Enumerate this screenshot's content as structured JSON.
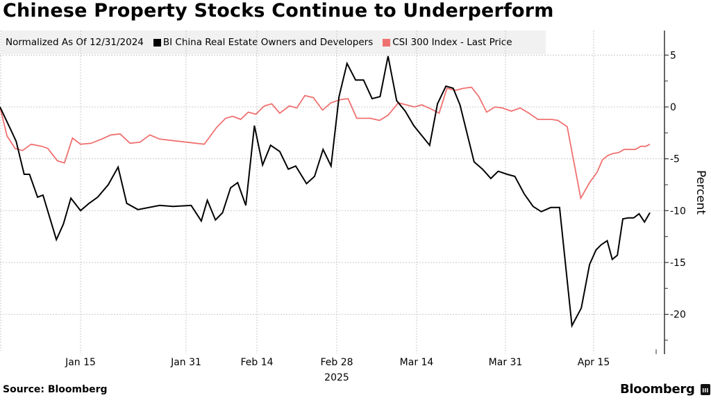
{
  "chart_data": {
    "type": "line",
    "title": "Chinese Property Stocks Continue to Underperform",
    "subtitle": "Normalized As Of 12/31/2024",
    "ylabel": "Percent",
    "xlabel": "",
    "year_label": "2025",
    "ylim": [
      -23.5,
      7.5
    ],
    "yticks": [
      5,
      0,
      -5,
      -10,
      -15,
      -20
    ],
    "yticks_minor": [
      7.5,
      2.5,
      -2.5,
      -7.5,
      -12.5,
      -17.5,
      -22.5
    ],
    "x_ticks": [
      {
        "label": "Jan 15",
        "day": 15
      },
      {
        "label": "Jan 31",
        "day": 31
      },
      {
        "label": "Feb 14",
        "day": 45
      },
      {
        "label": "Feb 28",
        "day": 59
      },
      {
        "label": "Mar 14",
        "day": 73
      },
      {
        "label": "Mar 31",
        "day": 90
      },
      {
        "label": "Apr 15",
        "day": 105
      }
    ],
    "x_range_days": [
      0,
      117
    ],
    "x_unit": "days since 2024-12-31",
    "grid": true,
    "legend_position": "top",
    "series": [
      {
        "name": "BI China Real Estate Owners and Developers",
        "color": "#000000",
        "points": [
          [
            0,
            0
          ],
          [
            2,
            -2.2
          ],
          [
            3,
            -3.3
          ],
          [
            4.5,
            -6.5
          ],
          [
            5.5,
            -6.5
          ],
          [
            7,
            -8.7
          ],
          [
            8,
            -8.5
          ],
          [
            10.5,
            -12.8
          ],
          [
            11.8,
            -11.3
          ],
          [
            13.2,
            -8.8
          ],
          [
            15,
            -10.0
          ],
          [
            16.3,
            -9.3
          ],
          [
            17.6,
            -8.7
          ],
          [
            19.2,
            -7.5
          ],
          [
            20.7,
            -5.8
          ],
          [
            22,
            -9.3
          ],
          [
            23.7,
            -9.9
          ],
          [
            27,
            -9.5
          ],
          [
            29,
            -9.6
          ],
          [
            32,
            -9.5
          ],
          [
            34,
            -11.0
          ],
          [
            35.2,
            -9.0
          ],
          [
            36.8,
            -10.9
          ],
          [
            38.2,
            -10.2
          ],
          [
            39.8,
            -7.8
          ],
          [
            41.2,
            -7.3
          ],
          [
            42.8,
            -9.5
          ],
          [
            44.5,
            -1.8
          ],
          [
            46,
            -5.6
          ],
          [
            47.4,
            -3.7
          ],
          [
            49,
            -4.3
          ],
          [
            50.5,
            -6.0
          ],
          [
            51.8,
            -5.7
          ],
          [
            53.7,
            -7.4
          ],
          [
            55.1,
            -6.7
          ],
          [
            56.6,
            -4.1
          ],
          [
            58,
            -5.7
          ],
          [
            59.4,
            1.0
          ],
          [
            60.8,
            4.2
          ],
          [
            62.3,
            2.6
          ],
          [
            63.7,
            2.6
          ],
          [
            65.2,
            0.8
          ],
          [
            66.6,
            1.0
          ],
          [
            68,
            4.9
          ],
          [
            69.5,
            0.6
          ],
          [
            71,
            -0.4
          ],
          [
            72.5,
            -1.8
          ],
          [
            75.5,
            -3.7
          ],
          [
            77,
            0.3
          ],
          [
            78.6,
            2.0
          ],
          [
            80,
            1.8
          ],
          [
            81.3,
            0.2
          ],
          [
            84,
            -5.3
          ],
          [
            85.6,
            -6.0
          ],
          [
            87.2,
            -6.9
          ],
          [
            88.6,
            -6.2
          ],
          [
            90.3,
            -6.5
          ],
          [
            91.6,
            -6.7
          ],
          [
            93.2,
            -8.4
          ],
          [
            94.7,
            -9.6
          ],
          [
            96.1,
            -10.1
          ],
          [
            97.7,
            -9.7
          ],
          [
            99.2,
            -9.7
          ],
          [
            101.3,
            -21.1
          ],
          [
            102.9,
            -19.4
          ],
          [
            104.3,
            -15.2
          ],
          [
            105.7,
            -13.8
          ],
          [
            107.2,
            -13.3
          ],
          [
            109,
            -12.9
          ],
          [
            110.5,
            -14.7
          ],
          [
            112,
            -14.3
          ],
          [
            113.6,
            -10.8
          ],
          [
            115.2,
            -10.7
          ],
          [
            116.8,
            -10.7
          ],
          [
            118.4,
            -10.3
          ],
          [
            120,
            -11.1
          ],
          [
            121.6,
            -10.2
          ]
        ]
      },
      {
        "name": "CSI 300 Index - Last Price",
        "color": "#f07070",
        "points": [
          [
            0,
            0
          ],
          [
            1.3,
            -2.8
          ],
          [
            2.8,
            -4.0
          ],
          [
            4.2,
            -4.2
          ],
          [
            5.8,
            -3.6
          ],
          [
            7.8,
            -3.8
          ],
          [
            8.9,
            -4.0
          ],
          [
            10.7,
            -5.2
          ],
          [
            12,
            -5.4
          ],
          [
            13.5,
            -3.0
          ],
          [
            15,
            -3.6
          ],
          [
            16.6,
            -3.5
          ],
          [
            18.2,
            -3.1
          ],
          [
            19.6,
            -2.7
          ],
          [
            21,
            -2.6
          ],
          [
            22.5,
            -3.5
          ],
          [
            24,
            -3.4
          ],
          [
            25.5,
            -2.7
          ],
          [
            27,
            -3.1
          ],
          [
            34.6,
            -3.6
          ],
          [
            37,
            -2.0
          ],
          [
            38.8,
            -1.1
          ],
          [
            40.2,
            -0.9
          ],
          [
            41.8,
            -1.2
          ],
          [
            43.3,
            -0.5
          ],
          [
            44.8,
            -0.7
          ],
          [
            46.3,
            0.1
          ],
          [
            47.6,
            0.3
          ],
          [
            49,
            -0.6
          ],
          [
            50.7,
            0.1
          ],
          [
            52,
            -0.1
          ],
          [
            53.4,
            1.1
          ],
          [
            54.9,
            0.9
          ],
          [
            56.5,
            -0.3
          ],
          [
            58,
            0.4
          ],
          [
            59.6,
            0.7
          ],
          [
            61,
            0.8
          ],
          [
            62.5,
            -1.1
          ],
          [
            64.9,
            -1.1
          ],
          [
            66.5,
            -1.3
          ],
          [
            68,
            -0.8
          ],
          [
            69.8,
            0.4
          ],
          [
            71.2,
            0.2
          ],
          [
            72.6,
            0.0
          ],
          [
            74,
            0.2
          ],
          [
            75.8,
            -0.2
          ],
          [
            77.3,
            -0.6
          ],
          [
            78.8,
            1.8
          ],
          [
            80.4,
            1.6
          ],
          [
            82,
            1.8
          ],
          [
            83.5,
            1.9
          ],
          [
            84.9,
            1.0
          ],
          [
            86.4,
            -0.5
          ],
          [
            88,
            0.0
          ],
          [
            89.4,
            -0.1
          ],
          [
            91,
            -0.4
          ],
          [
            92.5,
            -0.1
          ],
          [
            94,
            -0.6
          ],
          [
            95.5,
            -1.2
          ],
          [
            97.8,
            -1.2
          ],
          [
            98.9,
            -1.3
          ],
          [
            100.5,
            -1.9
          ],
          [
            102.8,
            -8.8
          ],
          [
            104.3,
            -7.3
          ],
          [
            106,
            -6.3
          ],
          [
            107.6,
            -5.1
          ],
          [
            109.1,
            -4.7
          ],
          [
            110.6,
            -4.5
          ],
          [
            112.4,
            -4.4
          ],
          [
            114,
            -4.1
          ],
          [
            115.6,
            -4.1
          ],
          [
            117.3,
            -4.1
          ],
          [
            118.9,
            -3.8
          ],
          [
            120.4,
            -3.8
          ],
          [
            121.6,
            -3.6
          ]
        ]
      }
    ]
  },
  "footer": {
    "source": "Source: Bloomberg",
    "brand": "Bloomberg"
  }
}
